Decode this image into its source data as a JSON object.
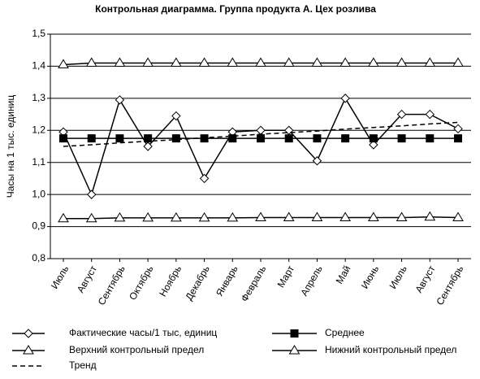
{
  "chart_data": {
    "type": "line",
    "title": "Контрольная диаграмма. Группа продукта А. Цех розлива",
    "y_label": "Часы на 1 тыс. единиц",
    "categories": [
      "Июль",
      "Август",
      "Сентябрь",
      "Октябрь",
      "Ноябрь",
      "Декабрь",
      "Январь",
      "Февраль",
      "Март",
      "Апрель",
      "Май",
      "Июнь",
      "Июль",
      "Август",
      "Сентябрь"
    ],
    "ylim": [
      0.8,
      1.5
    ],
    "yticks": [
      {
        "value": 0.8,
        "label": "0,8"
      },
      {
        "value": 0.9,
        "label": "0,9"
      },
      {
        "value": 1.0,
        "label": "1,0"
      },
      {
        "value": 1.1,
        "label": "1,1"
      },
      {
        "value": 1.2,
        "label": "1,2"
      },
      {
        "value": 1.3,
        "label": "1,3"
      },
      {
        "value": 1.4,
        "label": "1,4"
      },
      {
        "value": 1.5,
        "label": "1,5"
      }
    ],
    "grid": true,
    "series": [
      {
        "name": "Фактические часы/1 тыс, единиц",
        "color": "#000000",
        "marker": "diamond",
        "dashed": false,
        "values": [
          1.195,
          1.0,
          1.295,
          1.15,
          1.245,
          1.05,
          1.195,
          1.2,
          1.2,
          1.105,
          1.3,
          1.155,
          1.25,
          1.25,
          1.205
        ]
      },
      {
        "name": "Среднее",
        "color": "#000000",
        "marker": "square",
        "dashed": false,
        "values": [
          1.175,
          1.175,
          1.175,
          1.175,
          1.175,
          1.175,
          1.175,
          1.175,
          1.175,
          1.175,
          1.175,
          1.175,
          1.175,
          1.175,
          1.175
        ]
      },
      {
        "name": "Верхний контрольный предел",
        "color": "#000000",
        "marker": "triangle",
        "dashed": false,
        "values": [
          1.405,
          1.41,
          1.41,
          1.41,
          1.41,
          1.41,
          1.41,
          1.41,
          1.41,
          1.41,
          1.41,
          1.41,
          1.41,
          1.41,
          1.41
        ]
      },
      {
        "name": "Нижний контрольный предел",
        "color": "#000000",
        "marker": "triangle",
        "dashed": false,
        "values": [
          0.925,
          0.925,
          0.927,
          0.927,
          0.927,
          0.927,
          0.927,
          0.928,
          0.928,
          0.928,
          0.928,
          0.928,
          0.928,
          0.93,
          0.928
        ]
      },
      {
        "name": "Тренд",
        "color": "#000000",
        "marker": "none",
        "dashed": true,
        "values": [
          1.15,
          1.155,
          1.161,
          1.166,
          1.171,
          1.177,
          1.182,
          1.188,
          1.193,
          1.198,
          1.204,
          1.209,
          1.214,
          1.22,
          1.225
        ]
      }
    ]
  }
}
